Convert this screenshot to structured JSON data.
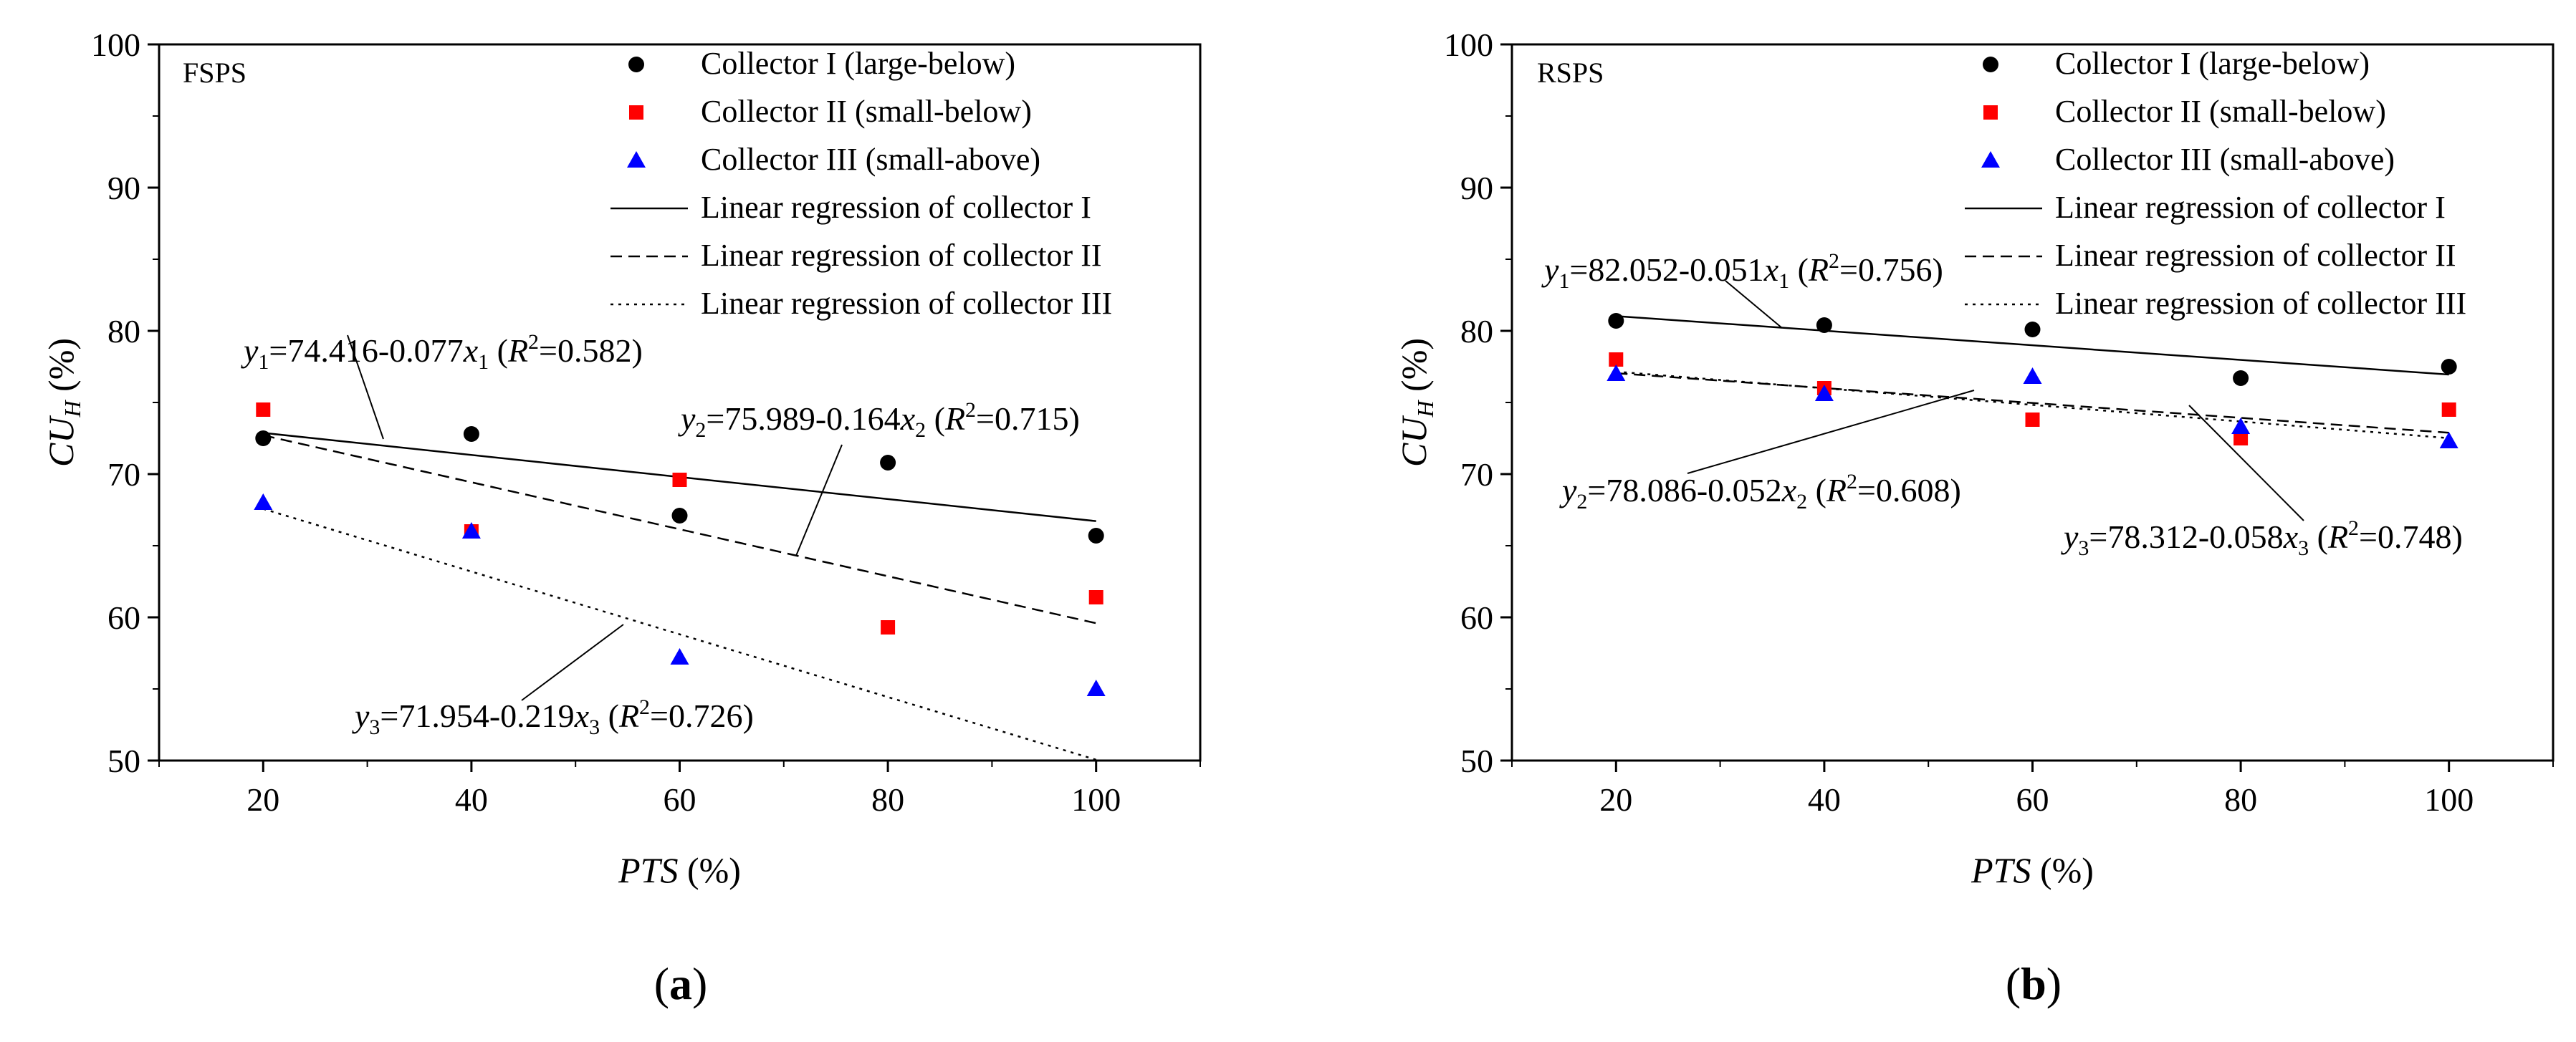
{
  "chart_data": [
    {
      "type": "scatter",
      "panel_caption": "a",
      "tag": "FSPS",
      "xlabel_italic": "PTS",
      "xlabel_rest": " (%)",
      "ylabel_main": "CU",
      "ylabel_sub": "H",
      "ylabel_rest": " (%)",
      "xlim": [
        10,
        110
      ],
      "ylim": [
        50,
        100
      ],
      "xticks": [
        20,
        40,
        60,
        80,
        100
      ],
      "yticks": [
        50,
        60,
        70,
        80,
        90,
        100
      ],
      "series": [
        {
          "name": "Collector I (large-below)",
          "marker": "circle",
          "color": "#000000",
          "x": [
            20,
            40,
            60,
            80,
            100
          ],
          "y": [
            72.5,
            72.8,
            67.1,
            70.8,
            65.7
          ]
        },
        {
          "name": "Collector II (small-below)",
          "marker": "square",
          "color": "#ff0000",
          "x": [
            20,
            40,
            60,
            80,
            100
          ],
          "y": [
            74.5,
            66.0,
            69.6,
            59.3,
            61.4
          ]
        },
        {
          "name": "Collector III (small-above)",
          "marker": "triangle",
          "color": "#0000ff",
          "x": [
            20,
            40,
            60,
            100
          ],
          "y": [
            68.0,
            66.0,
            57.2,
            55.0
          ]
        }
      ],
      "regressions": [
        {
          "name": "Linear regression of collector I",
          "dash": "solid",
          "intercept": 74.416,
          "slope": -0.077,
          "x_range": [
            20,
            100
          ],
          "eq_y": "y",
          "eq_sub": "1",
          "eq_mid": "=74.416-0.077",
          "eq_x": "x",
          "eq_open": " (",
          "eq_r": "R",
          "eq_sup": "2",
          "eq_close": "=0.582)"
        },
        {
          "name": "Linear regression of collector II",
          "dash": "dashed",
          "intercept": 75.989,
          "slope": -0.164,
          "x_range": [
            20,
            100
          ],
          "eq_y": "y",
          "eq_sub": "2",
          "eq_mid": "=75.989-0.164",
          "eq_x": "x",
          "eq_open": " (",
          "eq_r": "R",
          "eq_sup": "2",
          "eq_close": "=0.715)"
        },
        {
          "name": "Linear regression of collector III",
          "dash": "dotted",
          "intercept": 71.954,
          "slope": -0.219,
          "x_range": [
            20,
            100
          ],
          "eq_y": "y",
          "eq_sub": "3",
          "eq_mid": "=71.954-0.219",
          "eq_x": "x",
          "eq_open": " (",
          "eq_r": "R",
          "eq_sup": "2",
          "eq_close": "=0.726)"
        }
      ]
    },
    {
      "type": "scatter",
      "panel_caption": "b",
      "tag": "RSPS",
      "xlabel_italic": "PTS",
      "xlabel_rest": " (%)",
      "ylabel_main": "CU",
      "ylabel_sub": "H",
      "ylabel_rest": " (%)",
      "xlim": [
        10,
        110
      ],
      "ylim": [
        50,
        100
      ],
      "xticks": [
        20,
        40,
        60,
        80,
        100
      ],
      "yticks": [
        50,
        60,
        70,
        80,
        90,
        100
      ],
      "series": [
        {
          "name": "Collector I (large-below)",
          "marker": "circle",
          "color": "#000000",
          "x": [
            20,
            40,
            60,
            80,
            100
          ],
          "y": [
            80.7,
            80.4,
            80.1,
            76.7,
            77.5
          ]
        },
        {
          "name": "Collector II (small-below)",
          "marker": "square",
          "color": "#ff0000",
          "x": [
            20,
            40,
            60,
            80,
            100
          ],
          "y": [
            78.0,
            76.0,
            73.8,
            72.5,
            74.5
          ]
        },
        {
          "name": "Collector III (small-above)",
          "marker": "triangle",
          "color": "#0000ff",
          "x": [
            20,
            40,
            60,
            80,
            100
          ],
          "y": [
            77.0,
            75.6,
            76.8,
            73.3,
            72.3
          ]
        }
      ],
      "regressions": [
        {
          "name": "Linear regression of collector I",
          "dash": "solid",
          "intercept": 82.052,
          "slope": -0.051,
          "x_range": [
            20,
            100
          ],
          "eq_y": "y",
          "eq_sub": "1",
          "eq_mid": "=82.052-0.051",
          "eq_x": "x",
          "eq_open": " (",
          "eq_r": "R",
          "eq_sup": "2",
          "eq_close": "=0.756)"
        },
        {
          "name": "Linear regression of collector II",
          "dash": "dashed",
          "intercept": 78.086,
          "slope": -0.052,
          "x_range": [
            20,
            100
          ],
          "eq_y": "y",
          "eq_sub": "2",
          "eq_mid": "=78.086-0.052",
          "eq_x": "x",
          "eq_open": " (",
          "eq_r": "R",
          "eq_sup": "2",
          "eq_close": "=0.608)"
        },
        {
          "name": "Linear regression of collector III",
          "dash": "dotted",
          "intercept": 78.312,
          "slope": -0.058,
          "x_range": [
            20,
            100
          ],
          "eq_y": "y",
          "eq_sub": "3",
          "eq_mid": "=78.312-0.058",
          "eq_x": "x",
          "eq_open": " (",
          "eq_r": "R",
          "eq_sup": "2",
          "eq_close": "=0.748)"
        }
      ]
    }
  ]
}
